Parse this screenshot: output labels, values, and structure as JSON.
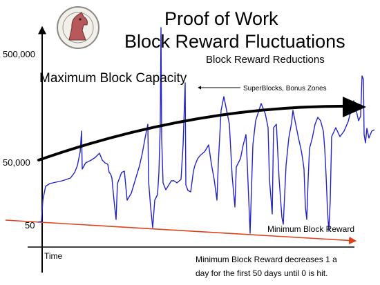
{
  "title_line1": "Proof of Work",
  "title_line2": "Block Reward Fluctuations",
  "labels": {
    "reductions": "Block Reward Reductions",
    "max_capacity": "Maximum Block Capacity",
    "superblocks": "SuperBlocks, Bonus Zones",
    "min_reward": "Minimum Block Reward",
    "time": "Time"
  },
  "y_ticks": [
    "500,000",
    "50,000",
    "50"
  ],
  "note_lines": [
    "Minimum Block Reward decreases 1 a",
    "day for the first 50 days until 0 is hit."
  ],
  "colors": {
    "reward_line": "#2222cc",
    "min_line": "#e0401c",
    "axis": "#000000"
  },
  "icons": {
    "logo": "horse-seal-logo"
  }
}
